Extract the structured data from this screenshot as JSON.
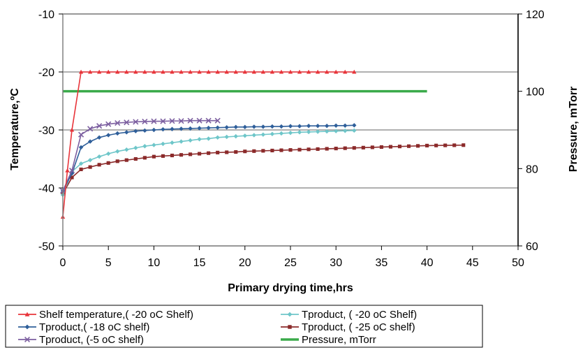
{
  "chart_data": {
    "type": "line",
    "xlabel": "Primary drying time,hrs",
    "ylabel": "Temperature,ºC",
    "y2label": "Pressure, mTorr",
    "xlim": [
      0,
      50
    ],
    "ylim": [
      -50,
      -10
    ],
    "y2lim": [
      60,
      120
    ],
    "xticks": [
      "0",
      "5",
      "10",
      "15",
      "20",
      "25",
      "30",
      "35",
      "40",
      "45",
      "50"
    ],
    "yticks": [
      "-10",
      "-20",
      "-30",
      "-40",
      "-50"
    ],
    "y2ticks": [
      "120",
      "100",
      "80",
      "60"
    ],
    "grid": "horizontal",
    "legend_position": "bottom",
    "series": [
      {
        "name": "Shelf temperature,( -20 oC Shelf)",
        "color": "#e8343a",
        "marker": "triangle",
        "axis": "left",
        "x": [
          0,
          0.5,
          1,
          2,
          3,
          4,
          5,
          6,
          7,
          8,
          9,
          10,
          11,
          12,
          13,
          14,
          15,
          16,
          17,
          18,
          19,
          20,
          21,
          22,
          23,
          24,
          25,
          26,
          27,
          28,
          29,
          30,
          31,
          32
        ],
        "y": [
          -45,
          -37,
          -30,
          -20,
          -20,
          -20,
          -20,
          -20,
          -20,
          -20,
          -20,
          -20,
          -20,
          -20,
          -20,
          -20,
          -20,
          -20,
          -20,
          -20,
          -20,
          -20,
          -20,
          -20,
          -20,
          -20,
          -20,
          -20,
          -20,
          -20,
          -20,
          -20,
          -20,
          -20
        ]
      },
      {
        "name": "Tproduct, ( -20 oC Shelf)",
        "color": "#6ec6c9",
        "marker": "diamond",
        "axis": "left",
        "x": [
          0,
          1,
          2,
          3,
          4,
          5,
          6,
          7,
          8,
          9,
          10,
          11,
          12,
          13,
          14,
          15,
          16,
          17,
          18,
          19,
          20,
          21,
          22,
          23,
          24,
          25,
          26,
          27,
          28,
          29,
          30,
          31,
          32
        ],
        "y": [
          -41.2,
          -37.2,
          -35.8,
          -35.2,
          -34.6,
          -34.1,
          -33.7,
          -33.4,
          -33.1,
          -32.8,
          -32.6,
          -32.4,
          -32.2,
          -32.0,
          -31.8,
          -31.6,
          -31.5,
          -31.3,
          -31.2,
          -31.1,
          -31.0,
          -30.9,
          -30.8,
          -30.7,
          -30.6,
          -30.5,
          -30.4,
          -30.35,
          -30.3,
          -30.25,
          -30.2,
          -30.15,
          -30.1
        ]
      },
      {
        "name": "Tproduct,( -18 oC shelf)",
        "color": "#2f5f9a",
        "marker": "diamond",
        "axis": "left",
        "x": [
          0,
          1,
          2,
          3,
          4,
          5,
          6,
          7,
          8,
          9,
          10,
          11,
          12,
          13,
          14,
          15,
          16,
          17,
          18,
          19,
          20,
          21,
          22,
          23,
          24,
          25,
          26,
          27,
          28,
          29,
          30,
          31,
          32
        ],
        "y": [
          -40.5,
          -37.5,
          -33,
          -32,
          -31.3,
          -30.9,
          -30.6,
          -30.4,
          -30.2,
          -30.1,
          -30.0,
          -29.9,
          -29.85,
          -29.8,
          -29.75,
          -29.7,
          -29.65,
          -29.6,
          -29.55,
          -29.5,
          -29.5,
          -29.45,
          -29.45,
          -29.4,
          -29.4,
          -29.35,
          -29.35,
          -29.3,
          -29.3,
          -29.3,
          -29.25,
          -29.25,
          -29.2
        ]
      },
      {
        "name": "Tproduct, ( -25 oC shelf)",
        "color": "#8b2a2a",
        "marker": "square",
        "axis": "left",
        "x": [
          0,
          1,
          2,
          3,
          4,
          5,
          6,
          7,
          8,
          9,
          10,
          11,
          12,
          13,
          14,
          15,
          16,
          17,
          18,
          19,
          20,
          21,
          22,
          23,
          24,
          25,
          26,
          27,
          28,
          29,
          30,
          31,
          32,
          33,
          34,
          35,
          36,
          37,
          38,
          39,
          40,
          41,
          42,
          43,
          44
        ],
        "y": [
          -41,
          -38.2,
          -36.8,
          -36.4,
          -36,
          -35.7,
          -35.4,
          -35.2,
          -35.0,
          -34.8,
          -34.6,
          -34.5,
          -34.4,
          -34.3,
          -34.2,
          -34.1,
          -34.0,
          -33.9,
          -33.85,
          -33.8,
          -33.7,
          -33.65,
          -33.6,
          -33.55,
          -33.5,
          -33.45,
          -33.4,
          -33.35,
          -33.3,
          -33.25,
          -33.2,
          -33.15,
          -33.1,
          -33.05,
          -33.0,
          -32.95,
          -32.9,
          -32.85,
          -32.8,
          -32.75,
          -32.7,
          -32.68,
          -32.66,
          -32.64,
          -32.62
        ]
      },
      {
        "name": "Tproduct, (-5 oC shelf)",
        "color": "#7c5fa0",
        "marker": "x",
        "axis": "left",
        "x": [
          0,
          1,
          2,
          3,
          4,
          5,
          6,
          7,
          8,
          9,
          10,
          11,
          12,
          13,
          14,
          15,
          16,
          17
        ],
        "y": [
          -40.5,
          -37,
          -30.8,
          -29.8,
          -29.3,
          -29.0,
          -28.8,
          -28.7,
          -28.6,
          -28.55,
          -28.5,
          -28.5,
          -28.45,
          -28.45,
          -28.4,
          -28.4,
          -28.4,
          -28.4
        ]
      },
      {
        "name": "Pressure, mTorr",
        "color": "#3aaa4a",
        "marker": "none",
        "axis": "right",
        "x": [
          0,
          40
        ],
        "y": [
          100,
          100
        ]
      }
    ]
  }
}
